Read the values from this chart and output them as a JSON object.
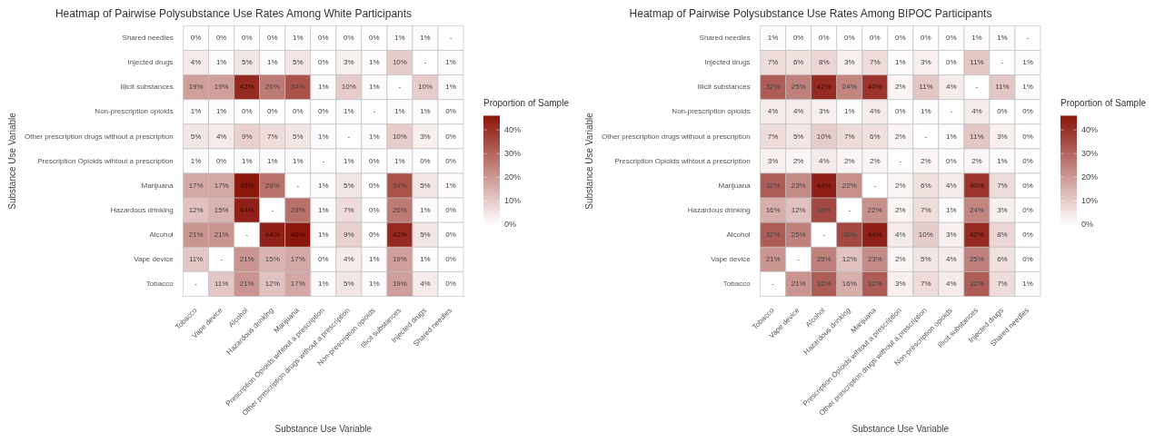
{
  "chart_data": [
    {
      "type": "heatmap",
      "title": "Heatmap of Pairwise Polysubstance Use Rates Among White Participants",
      "xlabel": "Substance Use Variable",
      "ylabel": "Substance Use Variable",
      "clabel": "Proportion of Sample",
      "categories": [
        "Tobacco",
        "Vape device",
        "Alcohol",
        "Hazardous drinking",
        "Marijuana",
        "Prescription Opioids wihtout a prescription",
        "Other prescription drugs without a prescription",
        "Non-prescription opioids",
        "Illicit substances",
        "Injected drugs",
        "Shared needles"
      ],
      "y_categories": [
        "Shared needles",
        "Injected drugs",
        "Illicit substances",
        "Non-prescription opioids",
        "Other prescription drugs without a prescription",
        "Prescription Opioids wihtout a prescription",
        "Marijuana",
        "Hazardous drinking",
        "Alcohol",
        "Vape device",
        "Tobacco"
      ],
      "cells": [
        [
          0,
          0,
          0,
          0,
          1,
          0,
          0,
          0,
          1,
          1,
          null
        ],
        [
          4,
          1,
          5,
          1,
          5,
          0,
          3,
          1,
          10,
          null,
          1
        ],
        [
          19,
          19,
          42,
          26,
          34,
          1,
          10,
          1,
          null,
          10,
          1
        ],
        [
          1,
          1,
          0,
          0,
          0,
          0,
          1,
          null,
          1,
          1,
          0
        ],
        [
          5,
          4,
          9,
          7,
          5,
          1,
          null,
          1,
          10,
          3,
          0
        ],
        [
          1,
          0,
          1,
          1,
          1,
          null,
          1,
          0,
          1,
          0,
          0
        ],
        [
          17,
          17,
          46,
          28,
          null,
          1,
          5,
          0,
          34,
          5,
          1
        ],
        [
          12,
          15,
          44,
          null,
          28,
          1,
          7,
          0,
          26,
          1,
          0
        ],
        [
          21,
          21,
          null,
          44,
          46,
          1,
          9,
          0,
          42,
          5,
          0
        ],
        [
          11,
          null,
          21,
          15,
          17,
          0,
          4,
          1,
          19,
          1,
          0
        ],
        [
          null,
          11,
          21,
          12,
          17,
          1,
          5,
          1,
          19,
          4,
          0
        ]
      ],
      "cell_labels": [
        [
          "0%",
          "0%",
          "0%",
          "0%",
          "1%",
          "0%",
          "0%",
          "0%",
          "1%",
          "1%",
          "-"
        ],
        [
          "4%",
          "1%",
          "5%",
          "1%",
          "5%",
          "0%",
          "3%",
          "1%",
          "10%",
          "-",
          "1%"
        ],
        [
          "19%",
          "19%",
          "42%",
          "26%",
          "34%",
          "1%",
          "10%",
          "1%",
          "-",
          "10%",
          "1%"
        ],
        [
          "1%",
          "1%",
          "0%",
          "0%",
          "0%",
          "0%",
          "1%",
          "-",
          "1%",
          "1%",
          "0%"
        ],
        [
          "5%",
          "4%",
          "9%",
          "7%",
          "5%",
          "1%",
          "-",
          "1%",
          "10%",
          "3%",
          "0%"
        ],
        [
          "1%",
          "0%",
          "1%",
          "1%",
          "1%",
          "-",
          "1%",
          "0%",
          "1%",
          "0%",
          "0%"
        ],
        [
          "17%",
          "17%",
          "46%",
          "28%",
          "-",
          "1%",
          "5%",
          "0%",
          "34%",
          "5%",
          "1%"
        ],
        [
          "12%",
          "15%",
          "44%",
          "-",
          "28%",
          "1%",
          "7%",
          "0%",
          "26%",
          "1%",
          "0%"
        ],
        [
          "21%",
          "21%",
          "-",
          "44%",
          "46%",
          "1%",
          "9%",
          "0%",
          "42%",
          "5%",
          "0%"
        ],
        [
          "11%",
          "-",
          "21%",
          "15%",
          "17%",
          "0%",
          "4%",
          "1%",
          "19%",
          "1%",
          "0%"
        ],
        [
          "-",
          "11%",
          "21%",
          "12%",
          "17%",
          "1%",
          "5%",
          "1%",
          "19%",
          "4%",
          "0%"
        ]
      ],
      "clim": [
        0,
        46
      ],
      "cticks": [
        {
          "value": 0,
          "label": "0%"
        },
        {
          "value": 10,
          "label": "10%"
        },
        {
          "value": 20,
          "label": "20%"
        },
        {
          "value": 30,
          "label": "30%"
        },
        {
          "value": 40,
          "label": "40%"
        }
      ]
    },
    {
      "type": "heatmap",
      "title": "Heatmap of Pairwise Polysubstance Use Rates Among BIPOC Participants",
      "xlabel": "Substance Use Variable",
      "ylabel": "Substance Use Variable",
      "clabel": "Proportion of Sample",
      "categories": [
        "Tobacco",
        "Vape device",
        "Alcohol",
        "Hazardous drinking",
        "Marijuana",
        "Prescription Opioids wihtout a prescription",
        "Other prescription drugs without a prescription",
        "Non-prescription opioids",
        "Illicit substances",
        "Injected drugs",
        "Shared needles"
      ],
      "y_categories": [
        "Shared needles",
        "Injected drugs",
        "Illicit substances",
        "Non-prescription opioids",
        "Other prescription drugs without a prescription",
        "Prescription Opioids wihtout a prescription",
        "Marijuana",
        "Hazardous drinking",
        "Alcohol",
        "Vape device",
        "Tobacco"
      ],
      "cells": [
        [
          1,
          0,
          0,
          0,
          0,
          0,
          0,
          0,
          1,
          1,
          null
        ],
        [
          7,
          6,
          8,
          3,
          7,
          1,
          3,
          0,
          11,
          null,
          1
        ],
        [
          32,
          25,
          42,
          24,
          40,
          2,
          11,
          4,
          null,
          11,
          1
        ],
        [
          4,
          4,
          3,
          1,
          4,
          0,
          1,
          null,
          4,
          0,
          0
        ],
        [
          7,
          5,
          10,
          7,
          6,
          2,
          null,
          1,
          11,
          3,
          0
        ],
        [
          3,
          2,
          4,
          2,
          2,
          null,
          2,
          0,
          2,
          1,
          0
        ],
        [
          32,
          23,
          44,
          22,
          null,
          2,
          6,
          4,
          40,
          7,
          0
        ],
        [
          16,
          12,
          36,
          null,
          22,
          2,
          7,
          1,
          24,
          3,
          0
        ],
        [
          32,
          25,
          null,
          36,
          44,
          4,
          10,
          3,
          42,
          8,
          0
        ],
        [
          21,
          null,
          25,
          12,
          23,
          2,
          5,
          4,
          25,
          6,
          0
        ],
        [
          null,
          21,
          32,
          16,
          32,
          3,
          7,
          4,
          32,
          7,
          1
        ]
      ],
      "cell_labels": [
        [
          "1%",
          "0%",
          "0%",
          "0%",
          "0%",
          "0%",
          "0%",
          "0%",
          "1%",
          "1%",
          "-"
        ],
        [
          "7%",
          "6%",
          "8%",
          "3%",
          "7%",
          "1%",
          "3%",
          "0%",
          "11%",
          "-",
          "1%"
        ],
        [
          "32%",
          "25%",
          "42%",
          "24%",
          "40%",
          "2%",
          "11%",
          "4%",
          "-",
          "11%",
          "1%"
        ],
        [
          "4%",
          "4%",
          "3%",
          "1%",
          "4%",
          "0%",
          "1%",
          "-",
          "4%",
          "0%",
          "0%"
        ],
        [
          "7%",
          "5%",
          "10%",
          "7%",
          "6%",
          "2%",
          "-",
          "1%",
          "11%",
          "3%",
          "0%"
        ],
        [
          "3%",
          "2%",
          "4%",
          "2%",
          "2%",
          "-",
          "2%",
          "0%",
          "2%",
          "1%",
          "0%"
        ],
        [
          "32%",
          "23%",
          "44%",
          "22%",
          "-",
          "2%",
          "6%",
          "4%",
          "40%",
          "7%",
          "0%"
        ],
        [
          "16%",
          "12%",
          "36%",
          "-",
          "22%",
          "2%",
          "7%",
          "1%",
          "24%",
          "3%",
          "0%"
        ],
        [
          "32%",
          "25%",
          "-",
          "36%",
          "44%",
          "4%",
          "10%",
          "3%",
          "42%",
          "8%",
          "0%"
        ],
        [
          "21%",
          "-",
          "25%",
          "12%",
          "23%",
          "2%",
          "5%",
          "4%",
          "25%",
          "6%",
          "0%"
        ],
        [
          "-",
          "21%",
          "32%",
          "16%",
          "32%",
          "3%",
          "7%",
          "4%",
          "32%",
          "7%",
          "1%"
        ]
      ],
      "clim": [
        0,
        46
      ],
      "cticks": [
        {
          "value": 0,
          "label": "0%"
        },
        {
          "value": 10,
          "label": "10%"
        },
        {
          "value": 20,
          "label": "20%"
        },
        {
          "value": 30,
          "label": "30%"
        },
        {
          "value": 40,
          "label": "40%"
        }
      ]
    }
  ]
}
